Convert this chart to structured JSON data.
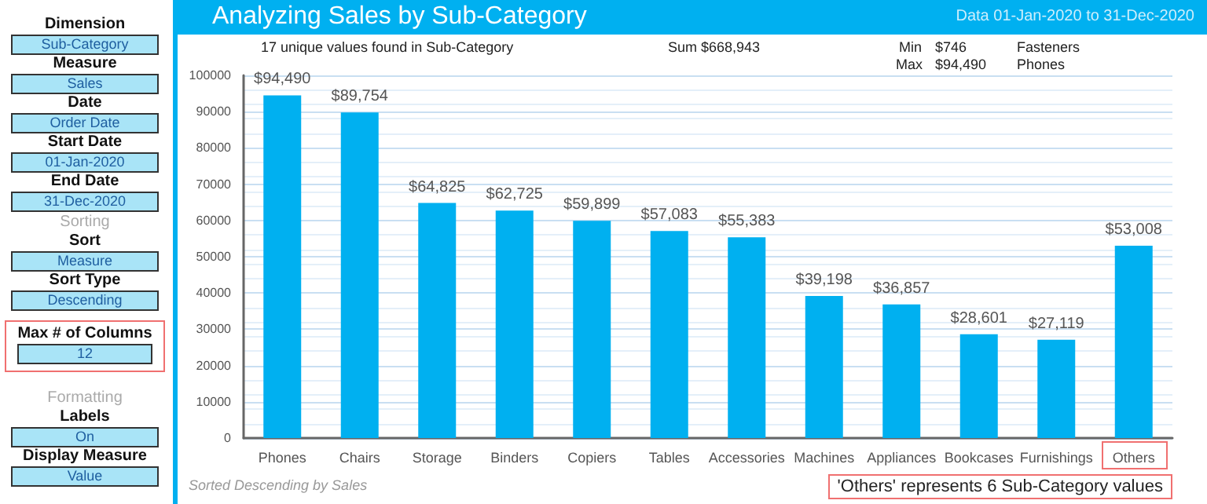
{
  "chart_data": {
    "type": "bar",
    "title": "Analyzing Sales by Sub-Category",
    "subtitle": "Data 01-Jan-2020 to 31-Dec-2020",
    "categories": [
      "Phones",
      "Chairs",
      "Storage",
      "Binders",
      "Copiers",
      "Tables",
      "Accessories",
      "Machines",
      "Appliances",
      "Bookcases",
      "Furnishings",
      "Others"
    ],
    "values": [
      94490,
      89754,
      64825,
      62725,
      59899,
      57083,
      55383,
      39198,
      36857,
      28601,
      27119,
      53008
    ],
    "value_labels": [
      "$94,490",
      "$89,754",
      "$64,825",
      "$62,725",
      "$59,899",
      "$57,083",
      "$55,383",
      "$39,198",
      "$36,857",
      "$28,601",
      "$27,119",
      "$53,008"
    ],
    "color": "#00b0f0",
    "ylim": [
      0,
      100000
    ],
    "yticks": [
      0,
      10000,
      20000,
      30000,
      40000,
      50000,
      60000,
      70000,
      80000,
      90000,
      100000
    ],
    "grid": true,
    "annotations": [
      "17 unique values found in Sub-Category",
      "Sum $668,943",
      "Min",
      "$746",
      "Fasteners",
      "Max",
      "$94,490",
      "Phones",
      "Sorted Descending by Sales",
      "'Others' represents 6 Sub-Category values",
      "Dimension",
      "Sub-Category",
      "Measure",
      "Sales",
      "Date",
      "Order Date",
      "Start Date",
      "01-Jan-2020",
      "End Date",
      "31-Dec-2020",
      "Sorting",
      "Sort",
      "Measure",
      "Sort Type",
      "Descending",
      "Max # of Columns",
      "12",
      "Formatting",
      "Labels",
      "On",
      "Display Measure",
      "Value"
    ]
  }
}
